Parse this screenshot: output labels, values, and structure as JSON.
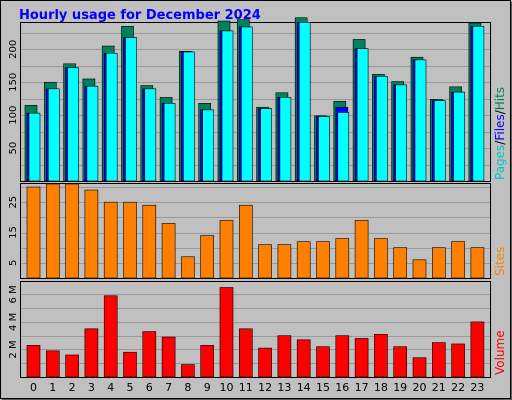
{
  "chart_data": {
    "type": "bar",
    "title": "Hourly usage for December 2024",
    "categories": [
      "0",
      "1",
      "2",
      "3",
      "4",
      "5",
      "6",
      "7",
      "8",
      "9",
      "10",
      "11",
      "12",
      "13",
      "14",
      "15",
      "16",
      "17",
      "18",
      "19",
      "20",
      "21",
      "22",
      "23"
    ],
    "hits_pages_files": {
      "ylim": [
        0,
        240
      ],
      "yticks": [
        "50",
        "100",
        "150",
        "200"
      ],
      "ytick_values": [
        50,
        100,
        150,
        200
      ],
      "ylabel_parts": [
        "Pages",
        "/",
        "Files",
        "/",
        "Hits"
      ],
      "series": [
        {
          "name": "Hits",
          "values": [
            115,
            150,
            178,
            155,
            205,
            235,
            145,
            127,
            197,
            118,
            243,
            245,
            112,
            134,
            248,
            99,
            121,
            215,
            162,
            151,
            188,
            124,
            143,
            240
          ]
        },
        {
          "name": "Files",
          "values": [
            103,
            140,
            172,
            144,
            194,
            218,
            140,
            118,
            196,
            108,
            228,
            234,
            110,
            127,
            241,
            98,
            112,
            201,
            159,
            146,
            184,
            122,
            135,
            235
          ]
        },
        {
          "name": "Pages",
          "values": [
            103,
            140,
            172,
            144,
            194,
            218,
            140,
            118,
            196,
            108,
            228,
            234,
            110,
            127,
            241,
            98,
            104,
            201,
            159,
            146,
            184,
            122,
            135,
            235
          ]
        }
      ]
    },
    "sites": {
      "ylim": [
        0,
        31
      ],
      "yticks": [
        "5",
        "15",
        "25"
      ],
      "ytick_values": [
        5,
        15,
        25
      ],
      "ylabel": "Sites",
      "values": [
        30,
        31,
        31,
        29,
        25,
        25,
        24,
        18,
        7,
        14,
        19,
        24,
        11,
        11,
        12,
        12,
        13,
        19,
        13,
        10,
        6,
        10,
        12,
        10
      ]
    },
    "volume": {
      "ylim": [
        0,
        6.9
      ],
      "yticks": [
        "2 M",
        "4 M",
        "6 M"
      ],
      "ytick_values": [
        2,
        4,
        6
      ],
      "ylabel": "Volume",
      "unit": "MB",
      "values": [
        2.3,
        1.9,
        1.6,
        3.5,
        5.9,
        1.8,
        3.3,
        2.9,
        0.9,
        2.3,
        6.5,
        3.5,
        2.1,
        3.0,
        2.7,
        2.2,
        3.0,
        2.8,
        3.1,
        2.2,
        1.4,
        2.5,
        2.4,
        4.0
      ]
    },
    "grid": true,
    "colors": {
      "background": "#c0c0c0",
      "title": "#0000ff",
      "hits": "#00805c",
      "files": "#0000ff",
      "pages": "#00ffff",
      "sites": "#ff8000",
      "volume": "#ff0000",
      "grid": "#9a9a9a",
      "axis_text": "#000000"
    }
  }
}
